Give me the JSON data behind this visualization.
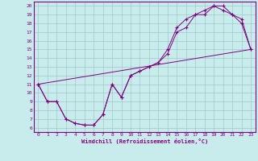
{
  "xlabel": "Windchill (Refroidissement éolien,°C)",
  "bg_color": "#c8ecec",
  "grid_color": "#a0c8c8",
  "line_color": "#800080",
  "xlim": [
    -0.5,
    23.5
  ],
  "ylim": [
    5.5,
    20.5
  ],
  "xticks": [
    0,
    1,
    2,
    3,
    4,
    5,
    6,
    7,
    8,
    9,
    10,
    11,
    12,
    13,
    14,
    15,
    16,
    17,
    18,
    19,
    20,
    21,
    22,
    23
  ],
  "yticks": [
    6,
    7,
    8,
    9,
    10,
    11,
    12,
    13,
    14,
    15,
    16,
    17,
    18,
    19,
    20
  ],
  "line1_x": [
    0,
    1,
    2,
    3,
    4,
    5,
    6,
    7,
    8,
    9,
    10,
    11,
    12,
    13,
    14,
    15,
    16,
    17,
    18,
    19,
    20,
    21,
    22,
    23
  ],
  "line1_y": [
    11,
    9,
    9,
    7,
    6.5,
    6.3,
    6.3,
    7.5,
    11,
    9.5,
    12,
    12.5,
    13,
    13.5,
    14.5,
    17,
    17.5,
    19,
    19,
    20,
    20,
    19,
    18.5,
    15
  ],
  "line2_x": [
    0,
    1,
    2,
    3,
    4,
    5,
    6,
    7,
    8,
    9,
    10,
    11,
    12,
    13,
    14,
    15,
    16,
    17,
    18,
    19,
    20,
    21,
    22,
    23
  ],
  "line2_y": [
    11,
    9,
    9,
    7,
    6.5,
    6.3,
    6.3,
    7.5,
    11,
    9.5,
    12,
    12.5,
    13,
    13.5,
    15,
    17.5,
    18.5,
    19,
    19.5,
    20,
    19.5,
    19,
    18,
    15
  ],
  "line3_x": [
    0,
    23
  ],
  "line3_y": [
    11,
    15
  ]
}
